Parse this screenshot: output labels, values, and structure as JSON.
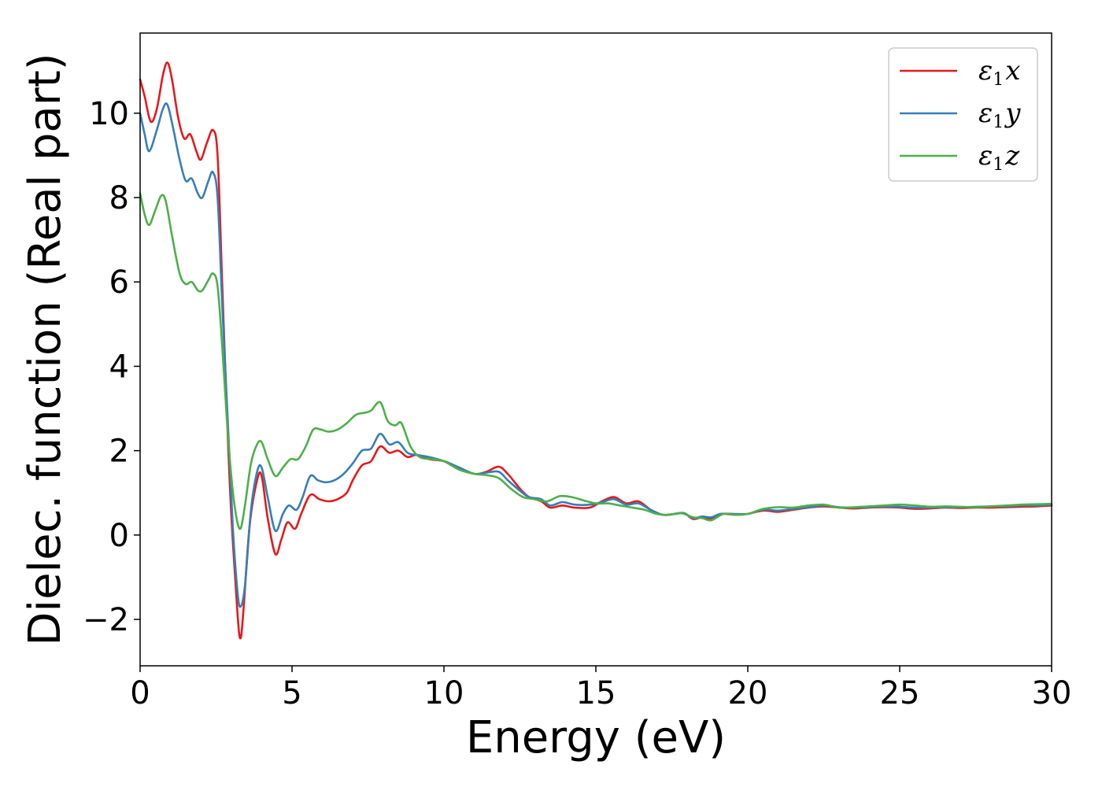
{
  "chart_data": {
    "type": "line",
    "title": "",
    "xlabel": "Energy (eV)",
    "ylabel": "Dielec. function (Real part)",
    "xlim": [
      0,
      30
    ],
    "ylim": [
      -3.1,
      11.9
    ],
    "x_ticks": [
      0,
      5,
      10,
      15,
      20,
      25,
      30
    ],
    "y_ticks": [
      -2,
      0,
      2,
      4,
      6,
      8,
      10
    ],
    "grid": false,
    "legend_position": "top-right",
    "series": [
      {
        "name": "ε1x",
        "label_main": "ε",
        "label_sub": "1",
        "label_var": "x",
        "color": "#e41a1c",
        "points": [
          [
            0,
            10.8
          ],
          [
            0.15,
            10.4
          ],
          [
            0.35,
            9.8
          ],
          [
            0.55,
            10.1
          ],
          [
            0.75,
            10.9
          ],
          [
            0.9,
            11.2
          ],
          [
            1.05,
            10.8
          ],
          [
            1.25,
            9.9
          ],
          [
            1.45,
            9.4
          ],
          [
            1.65,
            9.5
          ],
          [
            1.85,
            9.1
          ],
          [
            2.0,
            8.9
          ],
          [
            2.2,
            9.3
          ],
          [
            2.4,
            9.6
          ],
          [
            2.55,
            9.0
          ],
          [
            2.7,
            6.0
          ],
          [
            2.85,
            3.0
          ],
          [
            3.0,
            0.5
          ],
          [
            3.2,
            -1.8
          ],
          [
            3.3,
            -2.45
          ],
          [
            3.4,
            -1.8
          ],
          [
            3.6,
            0.2
          ],
          [
            3.85,
            1.3
          ],
          [
            4.0,
            1.4
          ],
          [
            4.2,
            0.4
          ],
          [
            4.45,
            -0.45
          ],
          [
            4.65,
            -0.1
          ],
          [
            4.85,
            0.3
          ],
          [
            5.1,
            0.15
          ],
          [
            5.3,
            0.5
          ],
          [
            5.6,
            0.95
          ],
          [
            5.9,
            0.85
          ],
          [
            6.2,
            0.8
          ],
          [
            6.5,
            0.85
          ],
          [
            6.8,
            1.0
          ],
          [
            7.0,
            1.3
          ],
          [
            7.3,
            1.65
          ],
          [
            7.6,
            1.75
          ],
          [
            7.9,
            2.1
          ],
          [
            8.2,
            1.95
          ],
          [
            8.5,
            2.0
          ],
          [
            8.8,
            1.85
          ],
          [
            9.1,
            1.9
          ],
          [
            9.5,
            1.8
          ],
          [
            10.0,
            1.75
          ],
          [
            10.5,
            1.6
          ],
          [
            11.0,
            1.45
          ],
          [
            11.4,
            1.5
          ],
          [
            11.8,
            1.62
          ],
          [
            12.1,
            1.45
          ],
          [
            12.5,
            1.1
          ],
          [
            12.8,
            0.9
          ],
          [
            13.2,
            0.8
          ],
          [
            13.5,
            0.65
          ],
          [
            13.9,
            0.7
          ],
          [
            14.3,
            0.65
          ],
          [
            14.8,
            0.65
          ],
          [
            15.2,
            0.8
          ],
          [
            15.6,
            0.9
          ],
          [
            16.0,
            0.75
          ],
          [
            16.4,
            0.8
          ],
          [
            16.8,
            0.6
          ],
          [
            17.2,
            0.48
          ],
          [
            17.6,
            0.5
          ],
          [
            17.9,
            0.52
          ],
          [
            18.2,
            0.38
          ],
          [
            18.5,
            0.42
          ],
          [
            18.8,
            0.38
          ],
          [
            19.1,
            0.5
          ],
          [
            19.6,
            0.48
          ],
          [
            20.0,
            0.5
          ],
          [
            20.5,
            0.58
          ],
          [
            21.0,
            0.55
          ],
          [
            21.5,
            0.6
          ],
          [
            22.0,
            0.65
          ],
          [
            22.5,
            0.68
          ],
          [
            23.0,
            0.65
          ],
          [
            23.5,
            0.63
          ],
          [
            24.0,
            0.65
          ],
          [
            24.5,
            0.66
          ],
          [
            25.0,
            0.65
          ],
          [
            25.5,
            0.62
          ],
          [
            26.0,
            0.63
          ],
          [
            26.5,
            0.65
          ],
          [
            27.0,
            0.64
          ],
          [
            27.5,
            0.65
          ],
          [
            28.0,
            0.65
          ],
          [
            28.5,
            0.66
          ],
          [
            29.0,
            0.67
          ],
          [
            29.5,
            0.68
          ],
          [
            30.0,
            0.7
          ]
        ]
      },
      {
        "name": "ε1y",
        "label_main": "ε",
        "label_sub": "1",
        "label_var": "y",
        "color": "#377eb8",
        "points": [
          [
            0,
            10.0
          ],
          [
            0.15,
            9.5
          ],
          [
            0.3,
            9.1
          ],
          [
            0.55,
            9.6
          ],
          [
            0.75,
            10.1
          ],
          [
            0.9,
            10.2
          ],
          [
            1.1,
            9.6
          ],
          [
            1.3,
            8.9
          ],
          [
            1.5,
            8.4
          ],
          [
            1.7,
            8.45
          ],
          [
            1.9,
            8.1
          ],
          [
            2.05,
            8.0
          ],
          [
            2.25,
            8.4
          ],
          [
            2.4,
            8.6
          ],
          [
            2.55,
            8.0
          ],
          [
            2.7,
            5.5
          ],
          [
            2.9,
            2.5
          ],
          [
            3.05,
            0.2
          ],
          [
            3.2,
            -1.3
          ],
          [
            3.3,
            -1.7
          ],
          [
            3.45,
            -1.2
          ],
          [
            3.65,
            0.6
          ],
          [
            3.85,
            1.5
          ],
          [
            4.0,
            1.6
          ],
          [
            4.2,
            0.9
          ],
          [
            4.45,
            0.1
          ],
          [
            4.7,
            0.5
          ],
          [
            4.9,
            0.7
          ],
          [
            5.15,
            0.6
          ],
          [
            5.35,
            0.9
          ],
          [
            5.6,
            1.4
          ],
          [
            5.85,
            1.3
          ],
          [
            6.1,
            1.25
          ],
          [
            6.4,
            1.3
          ],
          [
            6.7,
            1.45
          ],
          [
            7.0,
            1.7
          ],
          [
            7.3,
            2.0
          ],
          [
            7.6,
            2.05
          ],
          [
            7.9,
            2.4
          ],
          [
            8.2,
            2.15
          ],
          [
            8.5,
            2.2
          ],
          [
            8.8,
            1.95
          ],
          [
            9.1,
            1.9
          ],
          [
            9.5,
            1.85
          ],
          [
            10.0,
            1.75
          ],
          [
            10.5,
            1.6
          ],
          [
            11.0,
            1.45
          ],
          [
            11.4,
            1.48
          ],
          [
            11.8,
            1.5
          ],
          [
            12.1,
            1.3
          ],
          [
            12.5,
            1.05
          ],
          [
            12.8,
            0.9
          ],
          [
            13.2,
            0.85
          ],
          [
            13.5,
            0.7
          ],
          [
            13.9,
            0.78
          ],
          [
            14.3,
            0.72
          ],
          [
            14.8,
            0.72
          ],
          [
            15.2,
            0.78
          ],
          [
            15.6,
            0.85
          ],
          [
            16.0,
            0.72
          ],
          [
            16.4,
            0.75
          ],
          [
            16.8,
            0.6
          ],
          [
            17.2,
            0.48
          ],
          [
            17.6,
            0.5
          ],
          [
            17.9,
            0.52
          ],
          [
            18.2,
            0.4
          ],
          [
            18.5,
            0.44
          ],
          [
            18.8,
            0.42
          ],
          [
            19.1,
            0.5
          ],
          [
            19.6,
            0.5
          ],
          [
            20.0,
            0.5
          ],
          [
            20.5,
            0.6
          ],
          [
            21.0,
            0.58
          ],
          [
            21.5,
            0.62
          ],
          [
            22.0,
            0.66
          ],
          [
            22.5,
            0.7
          ],
          [
            23.0,
            0.66
          ],
          [
            23.5,
            0.65
          ],
          [
            24.0,
            0.66
          ],
          [
            24.5,
            0.68
          ],
          [
            25.0,
            0.67
          ],
          [
            25.5,
            0.65
          ],
          [
            26.0,
            0.65
          ],
          [
            26.5,
            0.66
          ],
          [
            27.0,
            0.66
          ],
          [
            27.5,
            0.67
          ],
          [
            28.0,
            0.68
          ],
          [
            28.5,
            0.68
          ],
          [
            29.0,
            0.7
          ],
          [
            29.5,
            0.7
          ],
          [
            30.0,
            0.72
          ]
        ]
      },
      {
        "name": "ε1z",
        "label_main": "ε",
        "label_sub": "1",
        "label_var": "z",
        "color": "#4daf4a",
        "points": [
          [
            0,
            8.1
          ],
          [
            0.15,
            7.6
          ],
          [
            0.3,
            7.35
          ],
          [
            0.5,
            7.7
          ],
          [
            0.7,
            8.05
          ],
          [
            0.85,
            7.9
          ],
          [
            1.05,
            7.1
          ],
          [
            1.3,
            6.2
          ],
          [
            1.5,
            5.95
          ],
          [
            1.7,
            6.0
          ],
          [
            1.9,
            5.8
          ],
          [
            2.05,
            5.8
          ],
          [
            2.25,
            6.05
          ],
          [
            2.4,
            6.2
          ],
          [
            2.55,
            5.9
          ],
          [
            2.7,
            4.5
          ],
          [
            2.85,
            2.8
          ],
          [
            3.0,
            1.4
          ],
          [
            3.15,
            0.5
          ],
          [
            3.3,
            0.15
          ],
          [
            3.45,
            0.7
          ],
          [
            3.65,
            1.7
          ],
          [
            3.85,
            2.15
          ],
          [
            4.0,
            2.2
          ],
          [
            4.2,
            1.8
          ],
          [
            4.45,
            1.4
          ],
          [
            4.7,
            1.6
          ],
          [
            4.95,
            1.8
          ],
          [
            5.2,
            1.8
          ],
          [
            5.45,
            2.1
          ],
          [
            5.7,
            2.5
          ],
          [
            5.95,
            2.5
          ],
          [
            6.2,
            2.45
          ],
          [
            6.5,
            2.5
          ],
          [
            6.8,
            2.65
          ],
          [
            7.1,
            2.85
          ],
          [
            7.4,
            2.9
          ],
          [
            7.6,
            2.95
          ],
          [
            7.9,
            3.15
          ],
          [
            8.15,
            2.7
          ],
          [
            8.4,
            2.6
          ],
          [
            8.6,
            2.65
          ],
          [
            8.9,
            2.1
          ],
          [
            9.2,
            1.85
          ],
          [
            9.6,
            1.8
          ],
          [
            10.0,
            1.75
          ],
          [
            10.5,
            1.55
          ],
          [
            11.0,
            1.45
          ],
          [
            11.4,
            1.42
          ],
          [
            11.8,
            1.35
          ],
          [
            12.2,
            1.1
          ],
          [
            12.6,
            0.9
          ],
          [
            13.0,
            0.85
          ],
          [
            13.4,
            0.8
          ],
          [
            13.8,
            0.92
          ],
          [
            14.2,
            0.9
          ],
          [
            14.6,
            0.82
          ],
          [
            15.0,
            0.75
          ],
          [
            15.4,
            0.75
          ],
          [
            15.8,
            0.7
          ],
          [
            16.2,
            0.65
          ],
          [
            16.6,
            0.6
          ],
          [
            17.0,
            0.5
          ],
          [
            17.4,
            0.48
          ],
          [
            17.8,
            0.52
          ],
          [
            18.2,
            0.42
          ],
          [
            18.5,
            0.4
          ],
          [
            18.8,
            0.35
          ],
          [
            19.2,
            0.5
          ],
          [
            19.6,
            0.48
          ],
          [
            20.0,
            0.5
          ],
          [
            20.5,
            0.62
          ],
          [
            21.0,
            0.66
          ],
          [
            21.5,
            0.65
          ],
          [
            22.0,
            0.7
          ],
          [
            22.5,
            0.72
          ],
          [
            23.0,
            0.65
          ],
          [
            23.5,
            0.66
          ],
          [
            24.0,
            0.68
          ],
          [
            24.5,
            0.7
          ],
          [
            25.0,
            0.72
          ],
          [
            25.5,
            0.7
          ],
          [
            26.0,
            0.67
          ],
          [
            26.5,
            0.68
          ],
          [
            27.0,
            0.67
          ],
          [
            27.5,
            0.66
          ],
          [
            28.0,
            0.68
          ],
          [
            28.5,
            0.7
          ],
          [
            29.0,
            0.72
          ],
          [
            29.5,
            0.73
          ],
          [
            30.0,
            0.74
          ]
        ]
      }
    ]
  }
}
